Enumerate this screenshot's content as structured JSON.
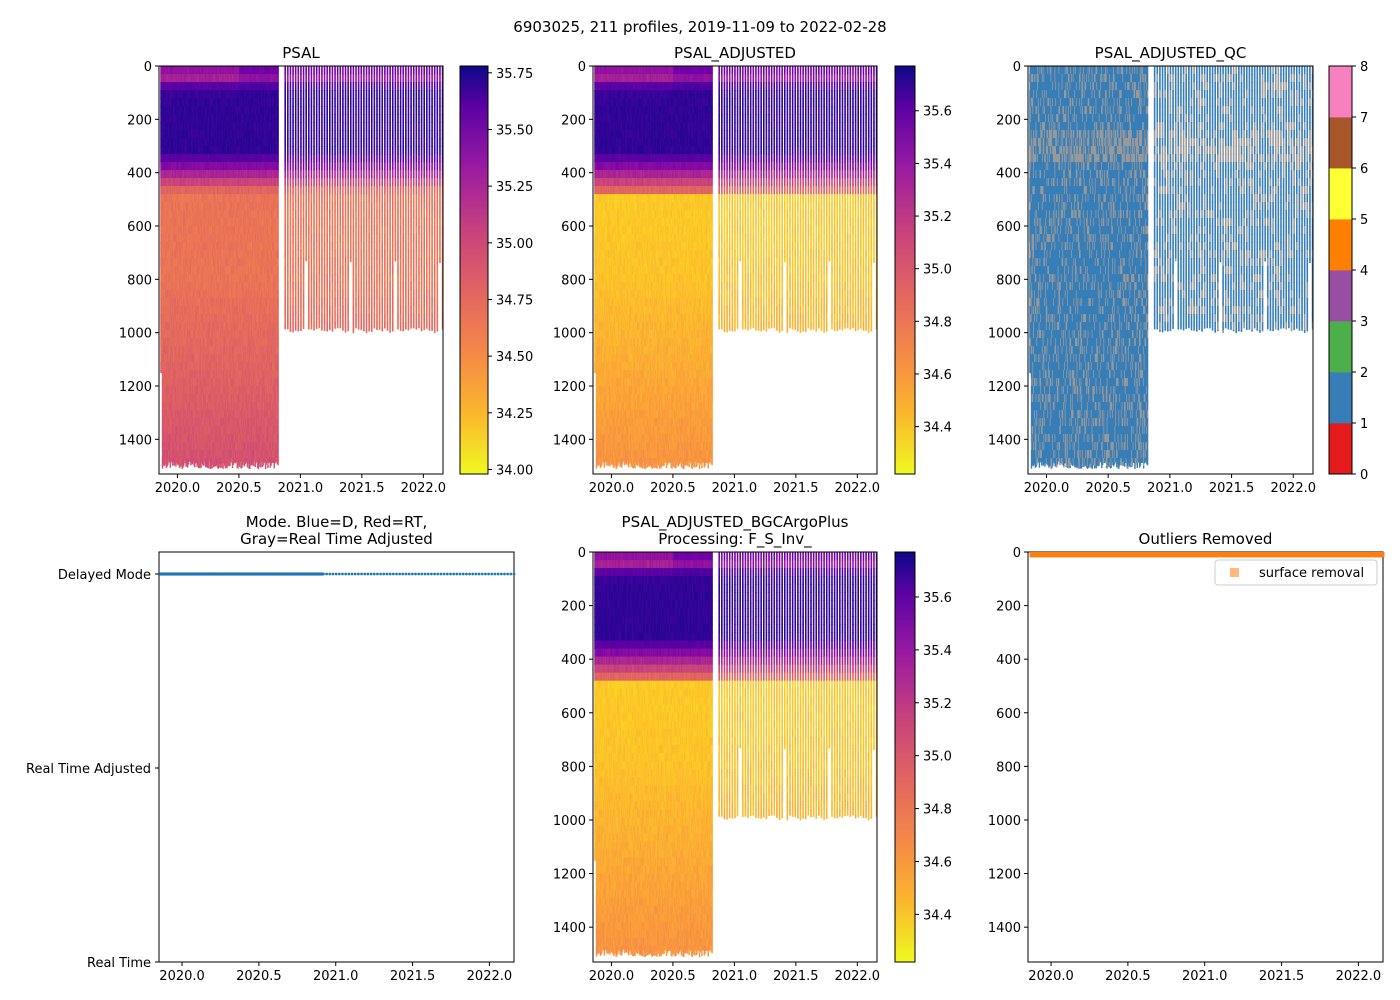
{
  "figure": {
    "suptitle": "6903025, 211 profiles, 2019-11-09 to 2022-02-28"
  },
  "chart_data": [
    {
      "id": "psal",
      "type": "heatmap",
      "title": "PSAL",
      "x_ticks": [
        2020.0,
        2020.5,
        2021.0,
        2021.5,
        2022.0
      ],
      "x_tick_labels": [
        "2020.0",
        "2020.5",
        "2021.0",
        "2021.5",
        "2022.0"
      ],
      "xlim": [
        2019.85,
        2022.16
      ],
      "y_ticks": [
        0,
        200,
        400,
        600,
        800,
        1000,
        1200,
        1400
      ],
      "y_tick_labels": [
        "0",
        "200",
        "400",
        "600",
        "800",
        "1000",
        "1200",
        "1400"
      ],
      "ylim": [
        1530,
        0
      ],
      "y_inverted": true,
      "colormap": "plasma_r",
      "colorbar_ticks": [
        34.0,
        34.25,
        34.5,
        34.75,
        35.0,
        35.25,
        35.5,
        35.75
      ],
      "colorbar_tick_labels": [
        "34.00",
        "34.25",
        "34.50",
        "34.75",
        "35.00",
        "35.25",
        "35.50",
        "35.75"
      ],
      "colorbar_range": [
        33.98,
        35.78
      ],
      "deep_profiles_end": 2020.82,
      "deep_profiles_max_depth": 1510,
      "shallow_profiles_max_depth": 1000
    },
    {
      "id": "psal_adjusted",
      "type": "heatmap",
      "title": "PSAL_ADJUSTED",
      "x_ticks": [
        2020.0,
        2020.5,
        2021.0,
        2021.5,
        2022.0
      ],
      "x_tick_labels": [
        "2020.0",
        "2020.5",
        "2021.0",
        "2021.5",
        "2022.0"
      ],
      "xlim": [
        2019.85,
        2022.16
      ],
      "y_ticks": [
        0,
        200,
        400,
        600,
        800,
        1000,
        1200,
        1400
      ],
      "y_tick_labels": [
        "0",
        "200",
        "400",
        "600",
        "800",
        "1000",
        "1200",
        "1400"
      ],
      "ylim": [
        1530,
        0
      ],
      "y_inverted": true,
      "colormap": "plasma_r",
      "colorbar_ticks": [
        34.4,
        34.6,
        34.8,
        35.0,
        35.2,
        35.4,
        35.6
      ],
      "colorbar_tick_labels": [
        "34.4",
        "34.6",
        "34.8",
        "35.0",
        "35.2",
        "35.4",
        "35.6"
      ],
      "colorbar_range": [
        34.22,
        35.77
      ],
      "deep_profiles_end": 2020.82,
      "deep_profiles_max_depth": 1510,
      "shallow_profiles_max_depth": 1000
    },
    {
      "id": "psal_adjusted_qc",
      "type": "heatmap",
      "title": "PSAL_ADJUSTED_QC",
      "x_ticks": [
        2020.0,
        2020.5,
        2021.0,
        2021.5,
        2022.0
      ],
      "x_tick_labels": [
        "2020.0",
        "2020.5",
        "2021.0",
        "2021.5",
        "2022.0"
      ],
      "xlim": [
        2019.85,
        2022.16
      ],
      "y_ticks": [
        0,
        200,
        400,
        600,
        800,
        1000,
        1200,
        1400
      ],
      "y_tick_labels": [
        "0",
        "200",
        "400",
        "600",
        "800",
        "1000",
        "1200",
        "1400"
      ],
      "ylim": [
        1530,
        0
      ],
      "y_inverted": true,
      "dominant_flag": 1,
      "colorbar_ticks": [
        0,
        1,
        2,
        3,
        4,
        5,
        6,
        7,
        8
      ],
      "colorbar_tick_labels": [
        "0",
        "1",
        "2",
        "3",
        "4",
        "5",
        "6",
        "7",
        "8"
      ],
      "flag_colors": [
        "#e41a1c",
        "#377eb8",
        "#4daf4a",
        "#984ea3",
        "#ff7f00",
        "#ffff33",
        "#a65628",
        "#f781bf",
        "#999999"
      ],
      "deep_profiles_end": 2020.82,
      "deep_profiles_max_depth": 1510,
      "shallow_profiles_max_depth": 1000
    },
    {
      "id": "mode",
      "type": "scatter",
      "title": "Mode. Blue=D, Red=RT,\nGray=Real Time Adjusted",
      "title_lines": [
        "Mode. Blue=D, Red=RT,",
        "Gray=Real Time Adjusted"
      ],
      "x_ticks": [
        2020.0,
        2020.5,
        2021.0,
        2021.5,
        2022.0
      ],
      "x_tick_labels": [
        "2020.0",
        "2020.5",
        "2021.0",
        "2021.5",
        "2022.0"
      ],
      "xlim": [
        2019.85,
        2022.16
      ],
      "y_categories": [
        "Real Time",
        "Real Time Adjusted",
        "Delayed Mode"
      ],
      "series": [
        {
          "name": "Delayed Mode",
          "color": "#1f77b4",
          "level": "Delayed Mode",
          "x_start": 2019.86,
          "x_end": 2022.16,
          "dense_until": 2020.92,
          "count": 211
        }
      ]
    },
    {
      "id": "psal_adjusted_bgc",
      "type": "heatmap",
      "title": "PSAL_ADJUSTED_BGCArgoPlus\nProcessing: F_S_Inv_",
      "title_lines": [
        "PSAL_ADJUSTED_BGCArgoPlus",
        "Processing: F_S_Inv_"
      ],
      "x_ticks": [
        2020.0,
        2020.5,
        2021.0,
        2021.5,
        2022.0
      ],
      "x_tick_labels": [
        "2020.0",
        "2020.5",
        "2021.0",
        "2021.5",
        "2022.0"
      ],
      "xlim": [
        2019.85,
        2022.16
      ],
      "y_ticks": [
        0,
        200,
        400,
        600,
        800,
        1000,
        1200,
        1400
      ],
      "y_tick_labels": [
        "0",
        "200",
        "400",
        "600",
        "800",
        "1000",
        "1200",
        "1400"
      ],
      "ylim": [
        1530,
        0
      ],
      "y_inverted": true,
      "colormap": "plasma_r",
      "colorbar_ticks": [
        34.4,
        34.6,
        34.8,
        35.0,
        35.2,
        35.4,
        35.6
      ],
      "colorbar_tick_labels": [
        "34.4",
        "34.6",
        "34.8",
        "35.0",
        "35.2",
        "35.4",
        "35.6"
      ],
      "colorbar_range": [
        34.22,
        35.77
      ],
      "deep_profiles_end": 2020.82,
      "deep_profiles_max_depth": 1510,
      "shallow_profiles_max_depth": 1000
    },
    {
      "id": "outliers",
      "type": "scatter",
      "title": "Outliers Removed",
      "x_ticks": [
        2020.0,
        2020.5,
        2021.0,
        2021.5,
        2022.0
      ],
      "x_tick_labels": [
        "2020.0",
        "2020.5",
        "2021.0",
        "2021.5",
        "2022.0"
      ],
      "xlim": [
        2019.85,
        2022.16
      ],
      "y_ticks": [
        0,
        200,
        400,
        600,
        800,
        1000,
        1200,
        1400
      ],
      "y_tick_labels": [
        "0",
        "200",
        "400",
        "600",
        "800",
        "1000",
        "1200",
        "1400"
      ],
      "ylim": [
        1530,
        0
      ],
      "y_inverted": true,
      "legend_position": "upper-right",
      "series": [
        {
          "name": "surface removal",
          "color": "#ff7f0e",
          "depth_range": [
            0,
            20
          ]
        }
      ]
    }
  ]
}
